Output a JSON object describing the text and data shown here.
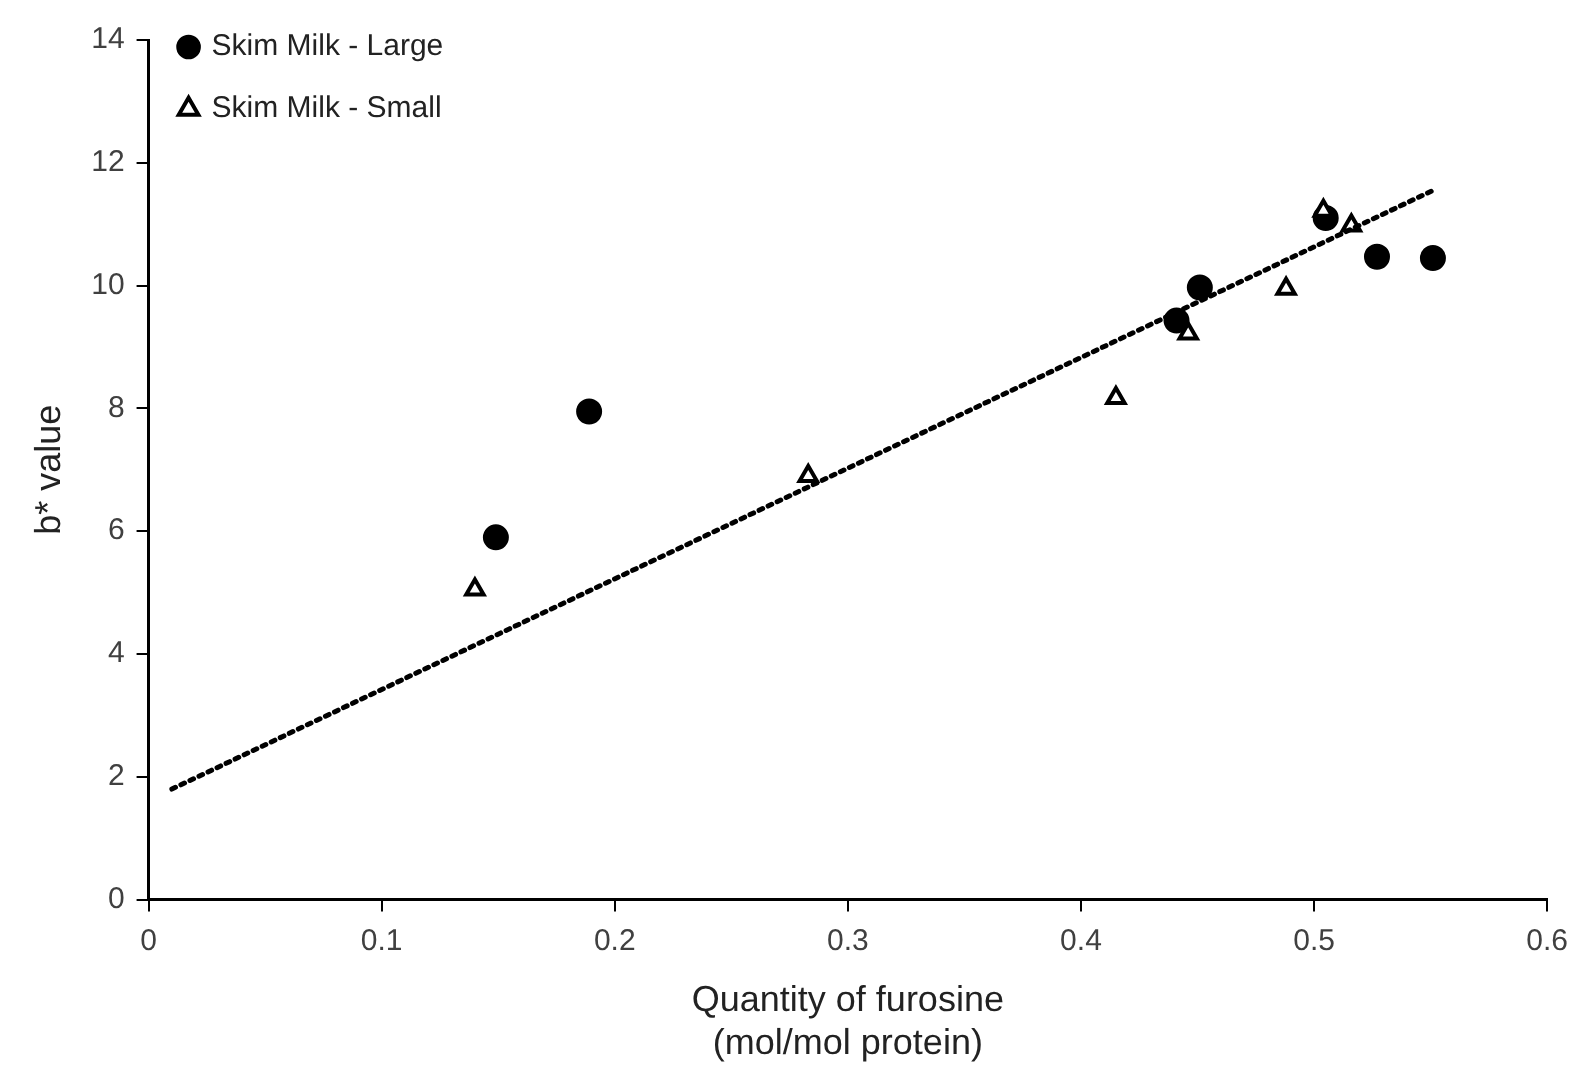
{
  "chart_data": {
    "type": "scatter",
    "xlabel": "Quantity of furosine\n(mol/mol protein)",
    "ylabel": "b* value",
    "xlim": [
      0,
      0.6
    ],
    "xticks": [
      0,
      0.1,
      0.2,
      0.3,
      0.4,
      0.5,
      0.6
    ],
    "ylim": [
      0,
      14
    ],
    "yticks": [
      0,
      2,
      4,
      6,
      8,
      10,
      12,
      14
    ],
    "grid": false,
    "legend": "top left",
    "series": [
      {
        "name": "Skim Milk - Large",
        "type": "scatter",
        "marker": "circle",
        "color": "#000000",
        "x": [
          0.149,
          0.189,
          0.441,
          0.451,
          0.505,
          0.527,
          0.551
        ],
        "values": [
          5.9,
          7.95,
          9.43,
          9.97,
          11.1,
          10.47,
          10.45
        ]
      },
      {
        "name": "Skim Milk - Small",
        "type": "scatter",
        "marker": "triangle",
        "color": "#000000",
        "x": [
          0.14,
          0.283,
          0.415,
          0.446,
          0.488,
          0.504,
          0.516
        ],
        "values": [
          5.05,
          6.9,
          8.17,
          9.22,
          9.95,
          11.22,
          10.98
        ]
      },
      {
        "type": "line",
        "marker": "none",
        "line_style": "dotted",
        "color": "#000000",
        "x": [
          0.01,
          0.551
        ],
        "values": [
          1.8,
          11.55
        ]
      }
    ]
  }
}
